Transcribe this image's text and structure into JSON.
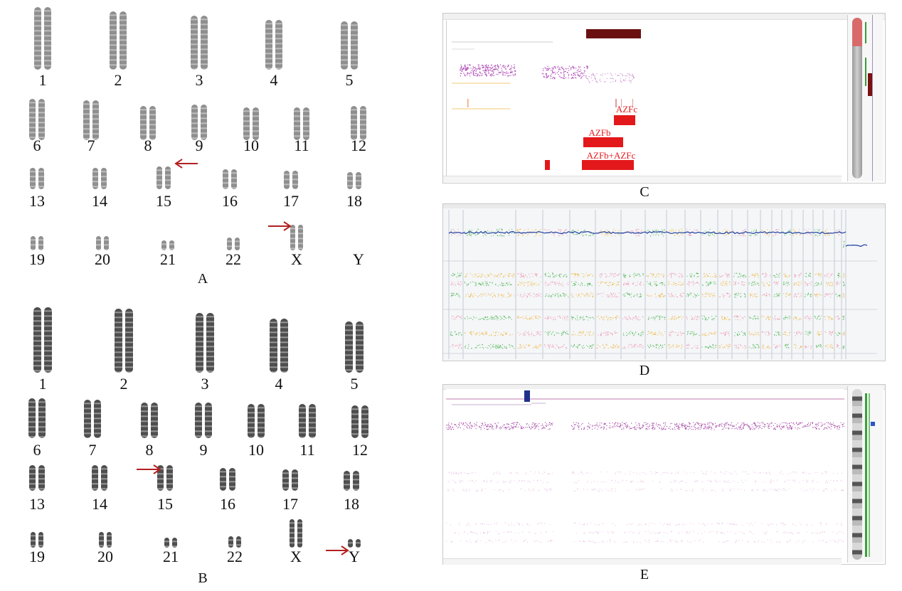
{
  "panel_labels": {
    "A": "A",
    "B": "B",
    "C": "C",
    "D": "D",
    "E": "E"
  },
  "karyotype_A": {
    "row1": [
      "1",
      "2",
      "3",
      "4",
      "5"
    ],
    "row2": [
      "6",
      "7",
      "8",
      "9",
      "10",
      "11",
      "12"
    ],
    "row3": [
      "13",
      "14",
      "15",
      "16",
      "17",
      "18"
    ],
    "row4": [
      "19",
      "20",
      "21",
      "22",
      "X",
      "Y"
    ]
  },
  "karyotype_B": {
    "row1": [
      "1",
      "2",
      "3",
      "4",
      "5"
    ],
    "row2": [
      "6",
      "7",
      "8",
      "9",
      "10",
      "11",
      "12"
    ],
    "row3": [
      "13",
      "14",
      "15",
      "16",
      "17",
      "18"
    ],
    "row4": [
      "19",
      "20",
      "21",
      "22",
      "X",
      "Y"
    ]
  },
  "panel_C": {
    "annotations": [
      "AZFc",
      "AZFb",
      "AZFb+AZFc"
    ]
  },
  "colors": {
    "arrow": "#b32020",
    "azf_bar": "#e3181b",
    "dark_bar": "#6b1010",
    "purple_points": "#a040a0",
    "blue_line": "#1f3fa0",
    "green": "#3fae3f",
    "orange": "#f0b030",
    "pink": "#f08fa8"
  }
}
